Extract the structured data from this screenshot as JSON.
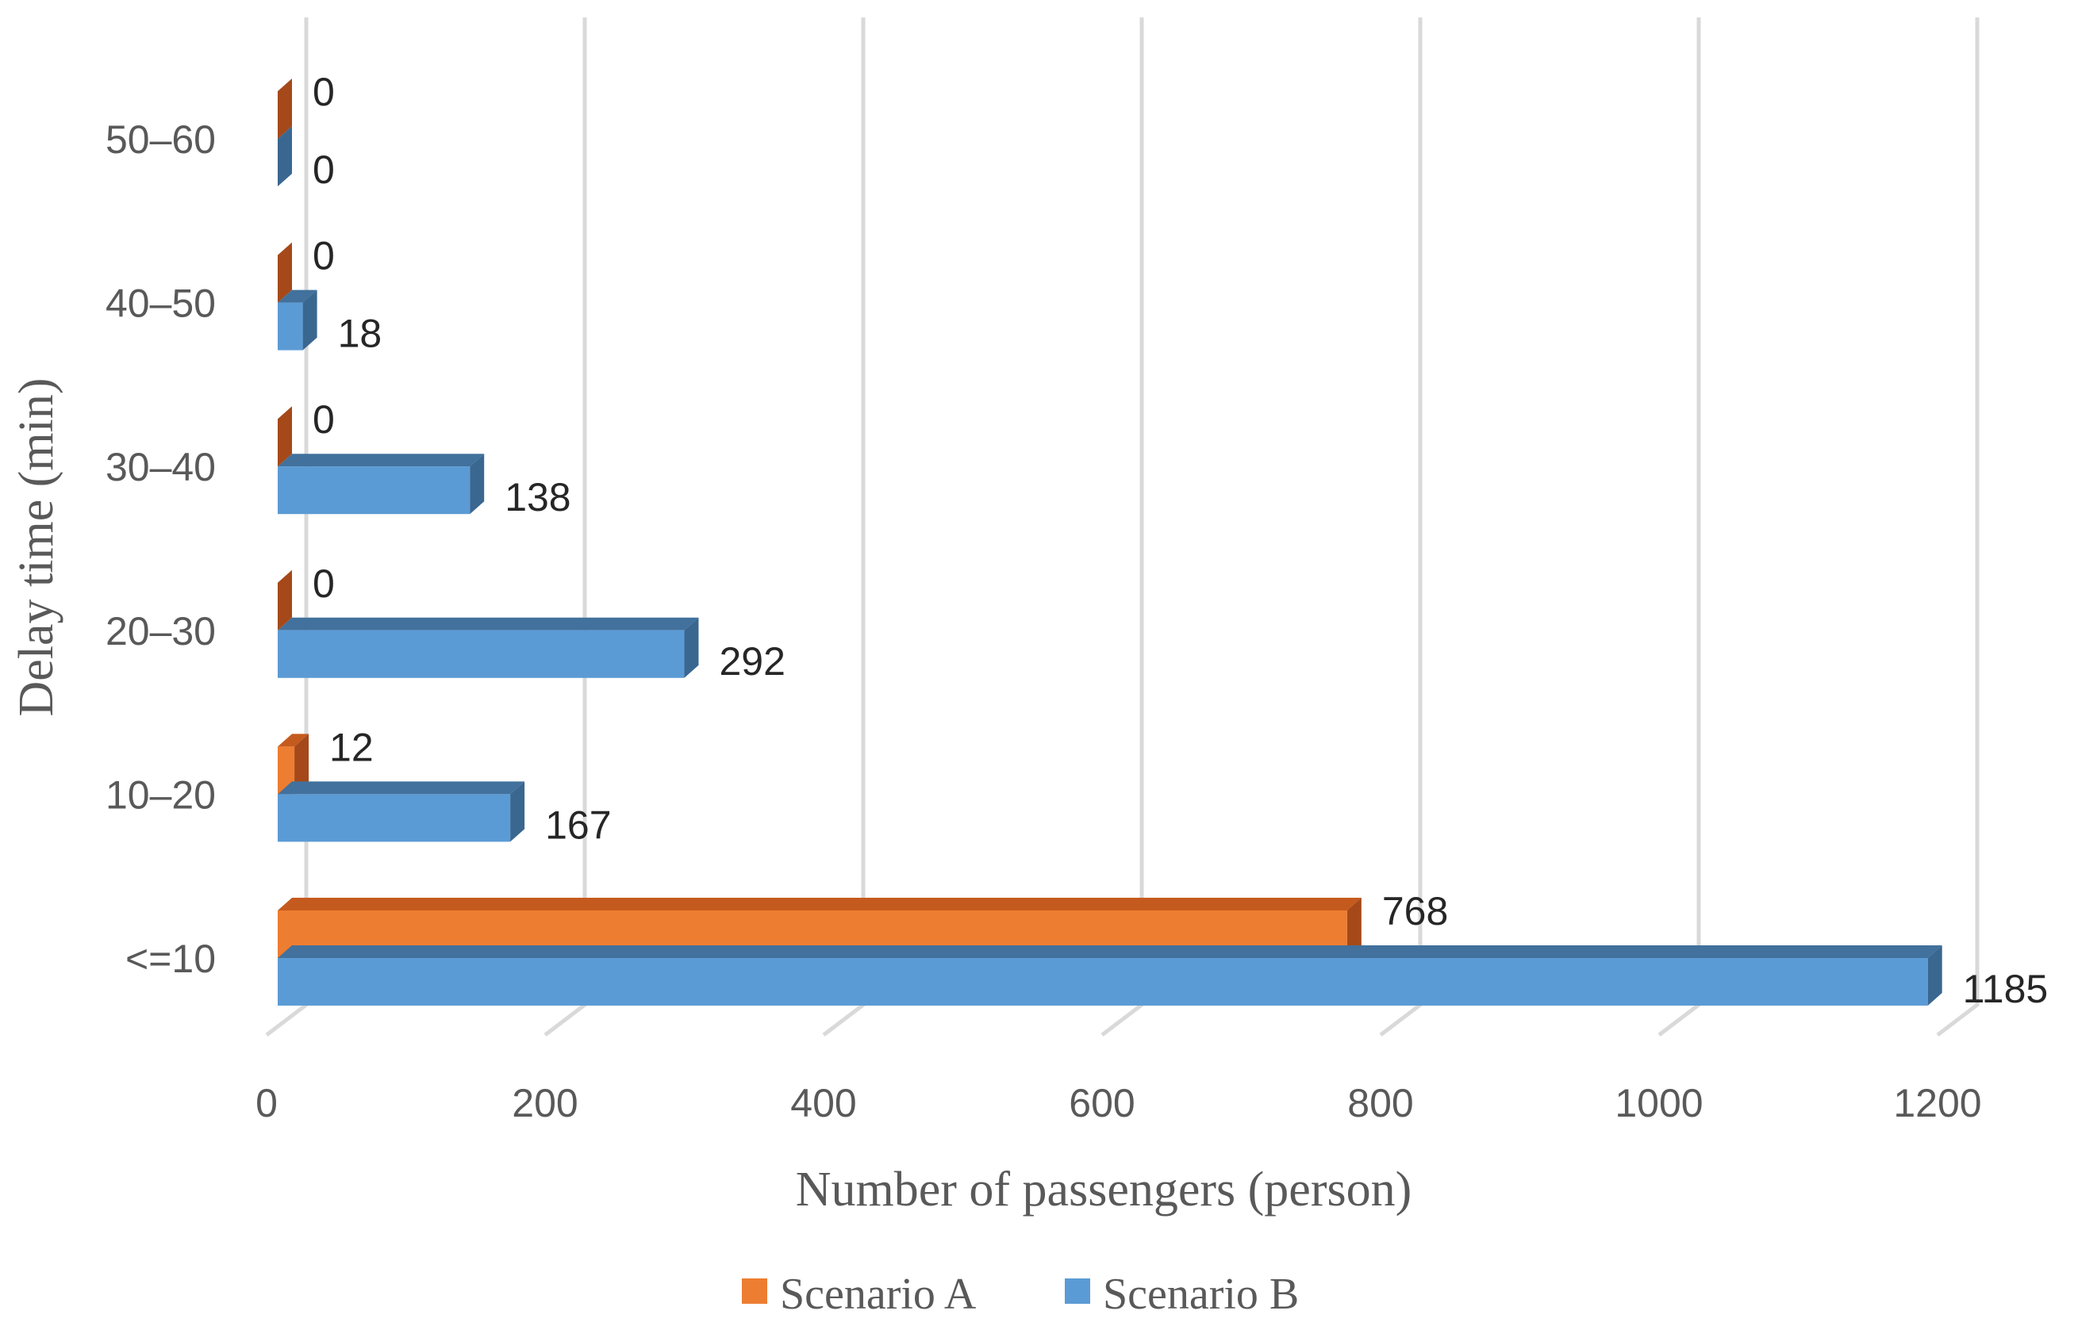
{
  "chart_data": {
    "type": "bar",
    "orientation": "horizontal",
    "style": "3d",
    "title": "",
    "xlabel": "Number of passengers (person)",
    "ylabel": "Delay time (min)",
    "xlim": [
      0,
      1200
    ],
    "x_ticks": [
      "0",
      "200",
      "400",
      "600",
      "800",
      "1000",
      "1200"
    ],
    "grid": "vertical",
    "legend_position": "bottom",
    "categories": [
      "<=10",
      "10–20",
      "20–30",
      "30–40",
      "40–50",
      "50–60"
    ],
    "series": [
      {
        "name": "Scenario A",
        "values": [
          768,
          12,
          0,
          0,
          0,
          0
        ],
        "labels": [
          "768",
          "12",
          "0",
          "0",
          "0",
          "0"
        ],
        "color": "#ED7D31",
        "top_color": "#C55A1E",
        "side_color": "#A5491A"
      },
      {
        "name": "Scenario B",
        "values": [
          1185,
          167,
          292,
          138,
          18,
          0
        ],
        "labels": [
          "1185",
          "167",
          "292",
          "138",
          "18",
          "0"
        ],
        "color": "#5B9BD5",
        "top_color": "#41719C",
        "side_color": "#3A6790"
      }
    ]
  }
}
